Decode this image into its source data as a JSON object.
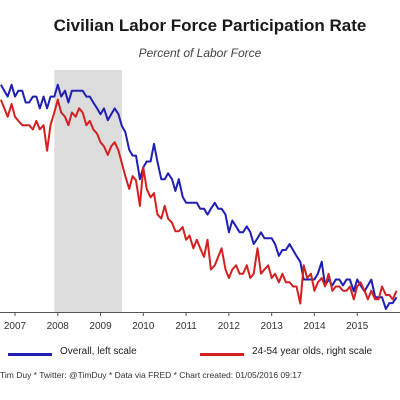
{
  "chart_data": {
    "type": "line",
    "title": "Civilian Labor Force Participation Rate",
    "subtitle": "Percent of Labor Force",
    "x_axis": {
      "range": [
        2006.65,
        2016.0
      ],
      "ticks": [
        2007,
        2008,
        2009,
        2010,
        2011,
        2012,
        2013,
        2014,
        2015
      ],
      "tick_labels": [
        "2007",
        "2008",
        "2009",
        "2010",
        "2011",
        "2012",
        "2013",
        "2014",
        "2015"
      ]
    },
    "left_axis_range": [
      62.35,
      66.45
    ],
    "right_axis_range": [
      80.6,
      83.45
    ],
    "grid": false,
    "legend_position": "bottom",
    "recession_band": {
      "start": 2007.92,
      "end": 2009.5,
      "color": "#dcdcdc"
    },
    "series": [
      {
        "name": "Overall, left scale",
        "axis": "left",
        "color": "#1f1fb4",
        "x": [
          2006.67,
          2006.75,
          2006.83,
          2006.92,
          2007.0,
          2007.08,
          2007.17,
          2007.25,
          2007.33,
          2007.42,
          2007.5,
          2007.58,
          2007.67,
          2007.75,
          2007.83,
          2007.92,
          2008.0,
          2008.08,
          2008.17,
          2008.25,
          2008.33,
          2008.42,
          2008.5,
          2008.58,
          2008.67,
          2008.75,
          2008.83,
          2008.92,
          2009.0,
          2009.08,
          2009.17,
          2009.25,
          2009.33,
          2009.42,
          2009.5,
          2009.58,
          2009.67,
          2009.75,
          2009.83,
          2009.92,
          2010.0,
          2010.08,
          2010.17,
          2010.25,
          2010.33,
          2010.42,
          2010.5,
          2010.58,
          2010.67,
          2010.75,
          2010.83,
          2010.92,
          2011.0,
          2011.08,
          2011.17,
          2011.25,
          2011.33,
          2011.42,
          2011.5,
          2011.58,
          2011.67,
          2011.75,
          2011.83,
          2011.92,
          2012.0,
          2012.08,
          2012.17,
          2012.25,
          2012.33,
          2012.42,
          2012.5,
          2012.58,
          2012.67,
          2012.75,
          2012.83,
          2012.92,
          2013.0,
          2013.08,
          2013.17,
          2013.25,
          2013.33,
          2013.42,
          2013.5,
          2013.58,
          2013.67,
          2013.75,
          2013.83,
          2013.92,
          2014.0,
          2014.08,
          2014.17,
          2014.25,
          2014.33,
          2014.42,
          2014.5,
          2014.58,
          2014.67,
          2014.75,
          2014.83,
          2014.92,
          2015.0,
          2015.08,
          2015.17,
          2015.25,
          2015.33,
          2015.42,
          2015.5,
          2015.58,
          2015.67,
          2015.75,
          2015.83,
          2015.92
        ],
        "values": [
          66.2,
          66.1,
          66.0,
          66.2,
          66.0,
          66.1,
          66.1,
          65.9,
          65.9,
          66.0,
          66.0,
          65.8,
          66.0,
          65.8,
          66.0,
          66.0,
          66.2,
          66.0,
          66.1,
          65.9,
          66.1,
          66.1,
          66.1,
          66.1,
          66.0,
          66.0,
          65.9,
          65.8,
          65.7,
          65.8,
          65.6,
          65.7,
          65.8,
          65.7,
          65.5,
          65.4,
          65.1,
          65.0,
          65.0,
          64.6,
          64.8,
          64.9,
          64.9,
          65.2,
          64.9,
          64.6,
          64.6,
          64.7,
          64.6,
          64.4,
          64.6,
          64.3,
          64.2,
          64.2,
          64.2,
          64.2,
          64.1,
          64.1,
          64.0,
          64.1,
          64.2,
          64.1,
          64.1,
          64.0,
          63.7,
          63.9,
          63.8,
          63.7,
          63.7,
          63.8,
          63.7,
          63.5,
          63.6,
          63.7,
          63.6,
          63.6,
          63.6,
          63.5,
          63.3,
          63.4,
          63.4,
          63.5,
          63.4,
          63.3,
          63.2,
          62.9,
          62.9,
          62.9,
          62.9,
          63.0,
          63.2,
          62.8,
          62.9,
          62.8,
          62.9,
          62.9,
          62.8,
          62.9,
          62.9,
          62.7,
          62.9,
          62.8,
          62.7,
          62.8,
          62.9,
          62.6,
          62.6,
          62.6,
          62.4,
          62.5,
          62.5,
          62.6
        ]
      },
      {
        "name": "24-54 year olds, right scale",
        "axis": "right",
        "color": "#d42020",
        "x": [
          2006.67,
          2006.75,
          2006.83,
          2006.92,
          2007.0,
          2007.08,
          2007.17,
          2007.25,
          2007.33,
          2007.42,
          2007.5,
          2007.58,
          2007.67,
          2007.75,
          2007.83,
          2007.92,
          2008.0,
          2008.08,
          2008.17,
          2008.25,
          2008.33,
          2008.42,
          2008.5,
          2008.58,
          2008.67,
          2008.75,
          2008.83,
          2008.92,
          2009.0,
          2009.08,
          2009.17,
          2009.25,
          2009.33,
          2009.42,
          2009.5,
          2009.58,
          2009.67,
          2009.75,
          2009.83,
          2009.92,
          2010.0,
          2010.08,
          2010.17,
          2010.25,
          2010.33,
          2010.42,
          2010.5,
          2010.58,
          2010.67,
          2010.75,
          2010.83,
          2010.92,
          2011.0,
          2011.08,
          2011.17,
          2011.25,
          2011.33,
          2011.42,
          2011.5,
          2011.58,
          2011.67,
          2011.75,
          2011.83,
          2011.92,
          2012.0,
          2012.08,
          2012.17,
          2012.25,
          2012.33,
          2012.42,
          2012.5,
          2012.58,
          2012.67,
          2012.75,
          2012.83,
          2012.92,
          2013.0,
          2013.08,
          2013.17,
          2013.25,
          2013.33,
          2013.42,
          2013.5,
          2013.58,
          2013.67,
          2013.75,
          2013.83,
          2013.92,
          2014.0,
          2014.08,
          2014.17,
          2014.25,
          2014.33,
          2014.42,
          2014.5,
          2014.58,
          2014.67,
          2014.75,
          2014.83,
          2014.92,
          2015.0,
          2015.08,
          2015.17,
          2015.25,
          2015.33,
          2015.42,
          2015.5,
          2015.58,
          2015.67,
          2015.75,
          2015.83,
          2015.92
        ],
        "values": [
          83.1,
          83.0,
          82.9,
          83.05,
          82.9,
          82.85,
          82.8,
          82.8,
          82.8,
          82.75,
          82.85,
          82.75,
          82.8,
          82.5,
          82.8,
          82.95,
          83.1,
          82.95,
          82.9,
          82.8,
          82.95,
          82.9,
          83.0,
          82.95,
          82.8,
          82.85,
          82.75,
          82.7,
          82.6,
          82.55,
          82.45,
          82.55,
          82.6,
          82.5,
          82.35,
          82.2,
          82.05,
          82.2,
          82.15,
          81.85,
          82.3,
          82.05,
          81.95,
          82.0,
          81.75,
          81.7,
          81.85,
          81.7,
          81.65,
          81.55,
          81.55,
          81.6,
          81.45,
          81.5,
          81.35,
          81.45,
          81.35,
          81.25,
          81.45,
          81.1,
          81.15,
          81.25,
          81.35,
          81.1,
          81.0,
          81.1,
          81.15,
          81.05,
          81.05,
          81.15,
          81.0,
          81.05,
          81.35,
          81.05,
          81.1,
          81.15,
          81.0,
          81.05,
          80.95,
          81.05,
          80.95,
          80.95,
          80.9,
          80.9,
          80.7,
          81.15,
          81.0,
          81.05,
          80.85,
          80.95,
          81.0,
          80.9,
          81.05,
          80.85,
          80.9,
          80.9,
          80.85,
          80.85,
          80.9,
          80.75,
          80.9,
          80.95,
          80.85,
          80.75,
          80.85,
          80.75,
          80.75,
          80.9,
          80.8,
          80.8,
          80.75,
          80.85
        ]
      }
    ]
  },
  "legend": {
    "overall": "Overall, left scale",
    "prime_age": "24-54 year olds, right scale"
  },
  "credit": "Tim Duy * Twitter: @TimDuy * Data via FRED * Chart created: 01/05/2016 09:17"
}
